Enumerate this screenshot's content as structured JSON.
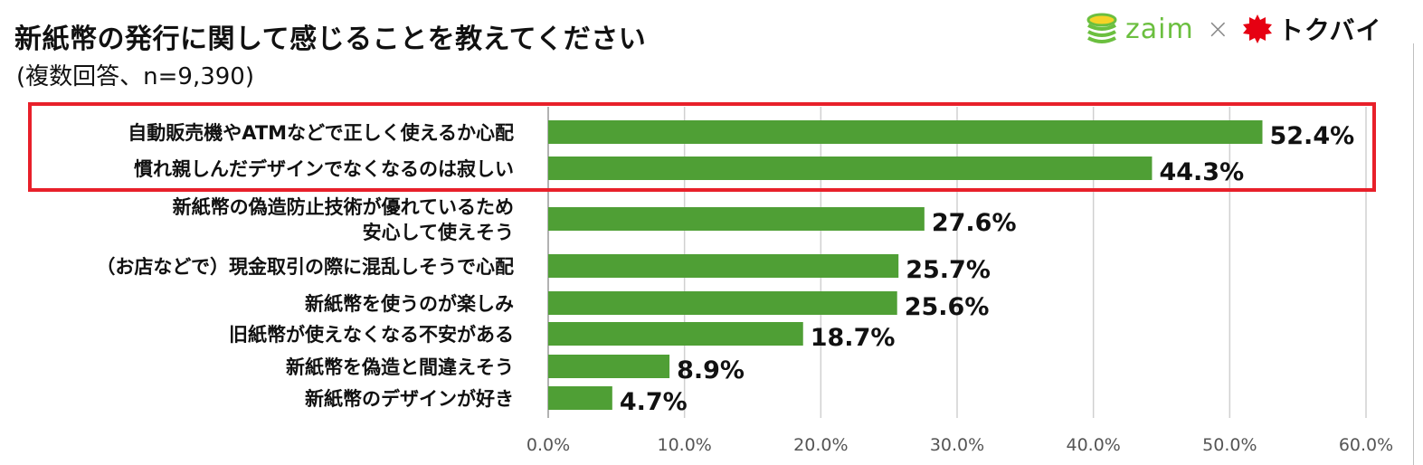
{
  "header": {
    "title": "新紙幣の発行に関して感じることを教えてください",
    "subtitle": "(複数回答、n=9,390)"
  },
  "logos": {
    "zaim": "zaim",
    "cross": "×",
    "tokubai": "トクバイ"
  },
  "colors": {
    "bar": "#4f9f35",
    "highlight_box": "#e8202a",
    "zaim_green": "#6bbf3f",
    "tokubai_red": "#e60012",
    "grid": "#d0d0d0"
  },
  "chart_data": {
    "type": "bar",
    "orientation": "horizontal",
    "categories": [
      [
        "自動販売機やATMなどで正しく使えるか心配"
      ],
      [
        "慣れ親しんだデザインでなくなるのは寂しい"
      ],
      [
        "新紙幣の偽造防止技術が優れているため",
        "安心して使えそう"
      ],
      [
        "（お店などで）現金取引の際に混乱しそうで心配"
      ],
      [
        "新紙幣を使うのが楽しみ"
      ],
      [
        "旧紙幣が使えなくなる不安がある"
      ],
      [
        "新紙幣を偽造と間違えそう"
      ],
      [
        "新紙幣のデザインが好き"
      ]
    ],
    "values": [
      52.4,
      44.3,
      27.6,
      25.7,
      25.6,
      18.7,
      8.9,
      4.7
    ],
    "value_labels": [
      "52.4%",
      "44.3%",
      "27.6%",
      "25.7%",
      "25.6%",
      "18.7%",
      "8.9%",
      "4.7%"
    ],
    "xlim": [
      0,
      60
    ],
    "tick_values": [
      0,
      10,
      20,
      30,
      40,
      50,
      60
    ],
    "tick_labels": [
      "0.0%",
      "10.0%",
      "20.0%",
      "30.0%",
      "40.0%",
      "50.0%",
      "60.0%"
    ],
    "grid": true,
    "highlighted_categories": [
      0,
      1
    ]
  }
}
